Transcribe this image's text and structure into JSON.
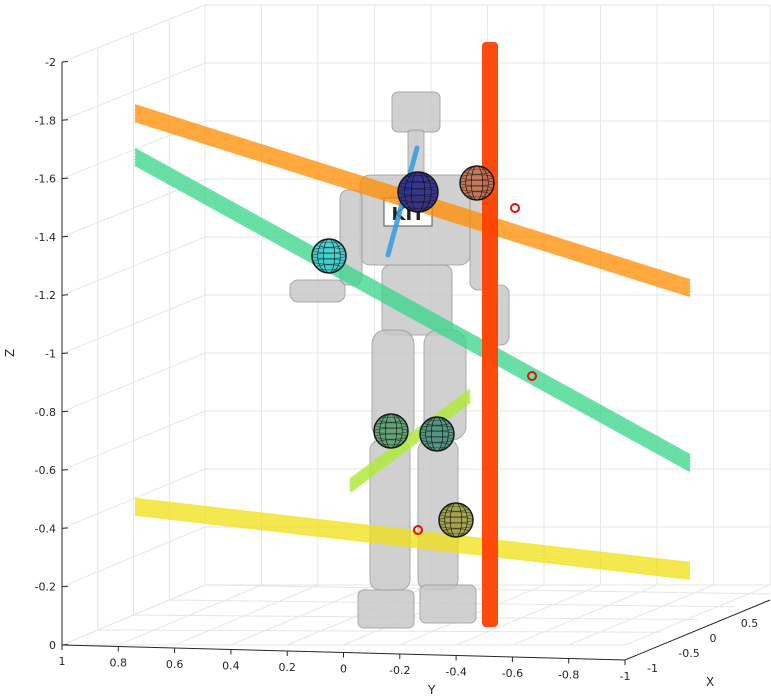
{
  "chart_data": {
    "type": "3d-line",
    "title": "",
    "xlabel": "X",
    "ylabel": "Y",
    "zlabel": "Z",
    "ylim": [
      -1,
      1
    ],
    "xlim": [
      -1,
      1
    ],
    "zlim": [
      -2,
      0
    ],
    "z_axis_direction": "reversed",
    "grid": true,
    "z_ticks": [
      "-2",
      "-1.8",
      "-1.6",
      "-1.4",
      "-1.2",
      "-1",
      "-0.8",
      "-0.6",
      "-0.4",
      "-0.2",
      "0"
    ],
    "y_ticks": [
      "1",
      "0.8",
      "0.6",
      "0.4",
      "0.2",
      "0",
      "-0.2",
      "-0.4",
      "-0.6",
      "-0.8",
      "-1"
    ],
    "x_ticks": [
      "-1",
      "-0.5",
      "0",
      "0.5"
    ],
    "series": [
      {
        "color": "#ff8c00",
        "kind": "line-bundle",
        "y": [
          0.98,
          -1.3
        ],
        "z": [
          -1.85,
          -1.25
        ]
      },
      {
        "color": "#3dd68c",
        "kind": "line-bundle",
        "y": [
          0.98,
          -1.3
        ],
        "z": [
          -1.7,
          -0.65
        ]
      },
      {
        "color": "#f0e010",
        "kind": "line-bundle",
        "y": [
          0.98,
          -1.3
        ],
        "z": [
          -0.5,
          -0.28
        ]
      },
      {
        "color": "#ff4000",
        "kind": "vertical-bar",
        "y": [
          -0.48,
          -0.48
        ],
        "z": [
          -2.0,
          0.05
        ]
      },
      {
        "color": "#3aa0e0",
        "kind": "line-segment",
        "y": [
          -0.2,
          -0.15
        ],
        "z": [
          -1.7,
          -1.3
        ]
      },
      {
        "color": "#b0e840",
        "kind": "line-bundle",
        "y": [
          0.05,
          -0.3
        ],
        "z": [
          -0.5,
          -0.85
        ]
      }
    ],
    "spheres": [
      {
        "color": "#3ccfd0",
        "y": 0.35,
        "z": -1.3
      },
      {
        "color": "#2a2a8c",
        "y": -0.25,
        "z": -1.55
      },
      {
        "color": "#c07050",
        "y": -0.46,
        "z": -1.62
      },
      {
        "color": "#5aa070",
        "y": -0.05,
        "z": -0.72
      },
      {
        "color": "#4a9080",
        "y": -0.28,
        "z": -0.72
      },
      {
        "color": "#a0a040",
        "y": -0.35,
        "z": -0.4
      }
    ],
    "logo_text": "KIT"
  }
}
